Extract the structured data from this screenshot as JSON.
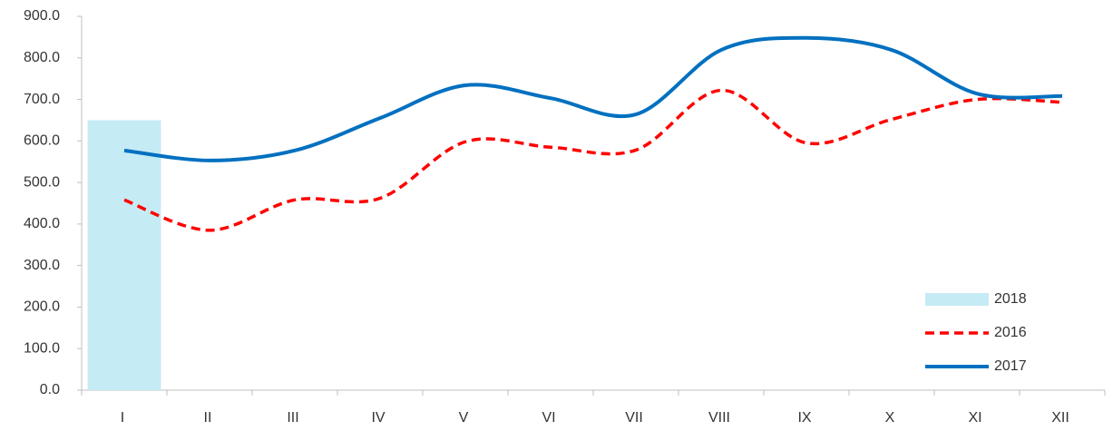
{
  "chart_data": {
    "type": "combo",
    "categories": [
      "I",
      "II",
      "III",
      "IV",
      "V",
      "VI",
      "VII",
      "VIII",
      "IX",
      "X",
      "XI",
      "XII"
    ],
    "series": [
      {
        "name": "2018",
        "type": "bar",
        "color": "#c5ebf5",
        "values": [
          650,
          null,
          null,
          null,
          null,
          null,
          null,
          null,
          null,
          null,
          null,
          null
        ]
      },
      {
        "name": "2016",
        "type": "line",
        "dash": true,
        "color": "#ff0000",
        "values": [
          458,
          385,
          458,
          462,
          598,
          585,
          578,
          722,
          595,
          652,
          700,
          693
        ]
      },
      {
        "name": "2017",
        "type": "line",
        "dash": false,
        "color": "#0070c0",
        "values": [
          577,
          553,
          577,
          655,
          734,
          703,
          664,
          819,
          848,
          819,
          714,
          708
        ]
      }
    ],
    "ylim": [
      0,
      900
    ],
    "yticks": [
      {
        "value": 0,
        "label": "0.0"
      },
      {
        "value": 100,
        "label": "100.0"
      },
      {
        "value": 200,
        "label": "200.0"
      },
      {
        "value": 300,
        "label": "300.0"
      },
      {
        "value": 400,
        "label": "400.0"
      },
      {
        "value": 500,
        "label": "500.0"
      },
      {
        "value": 600,
        "label": "600.0"
      },
      {
        "value": 700,
        "label": "700.0"
      },
      {
        "value": 800,
        "label": "800.0"
      },
      {
        "value": 900,
        "label": "900.0"
      }
    ],
    "legend": "lower right",
    "grid": false
  }
}
